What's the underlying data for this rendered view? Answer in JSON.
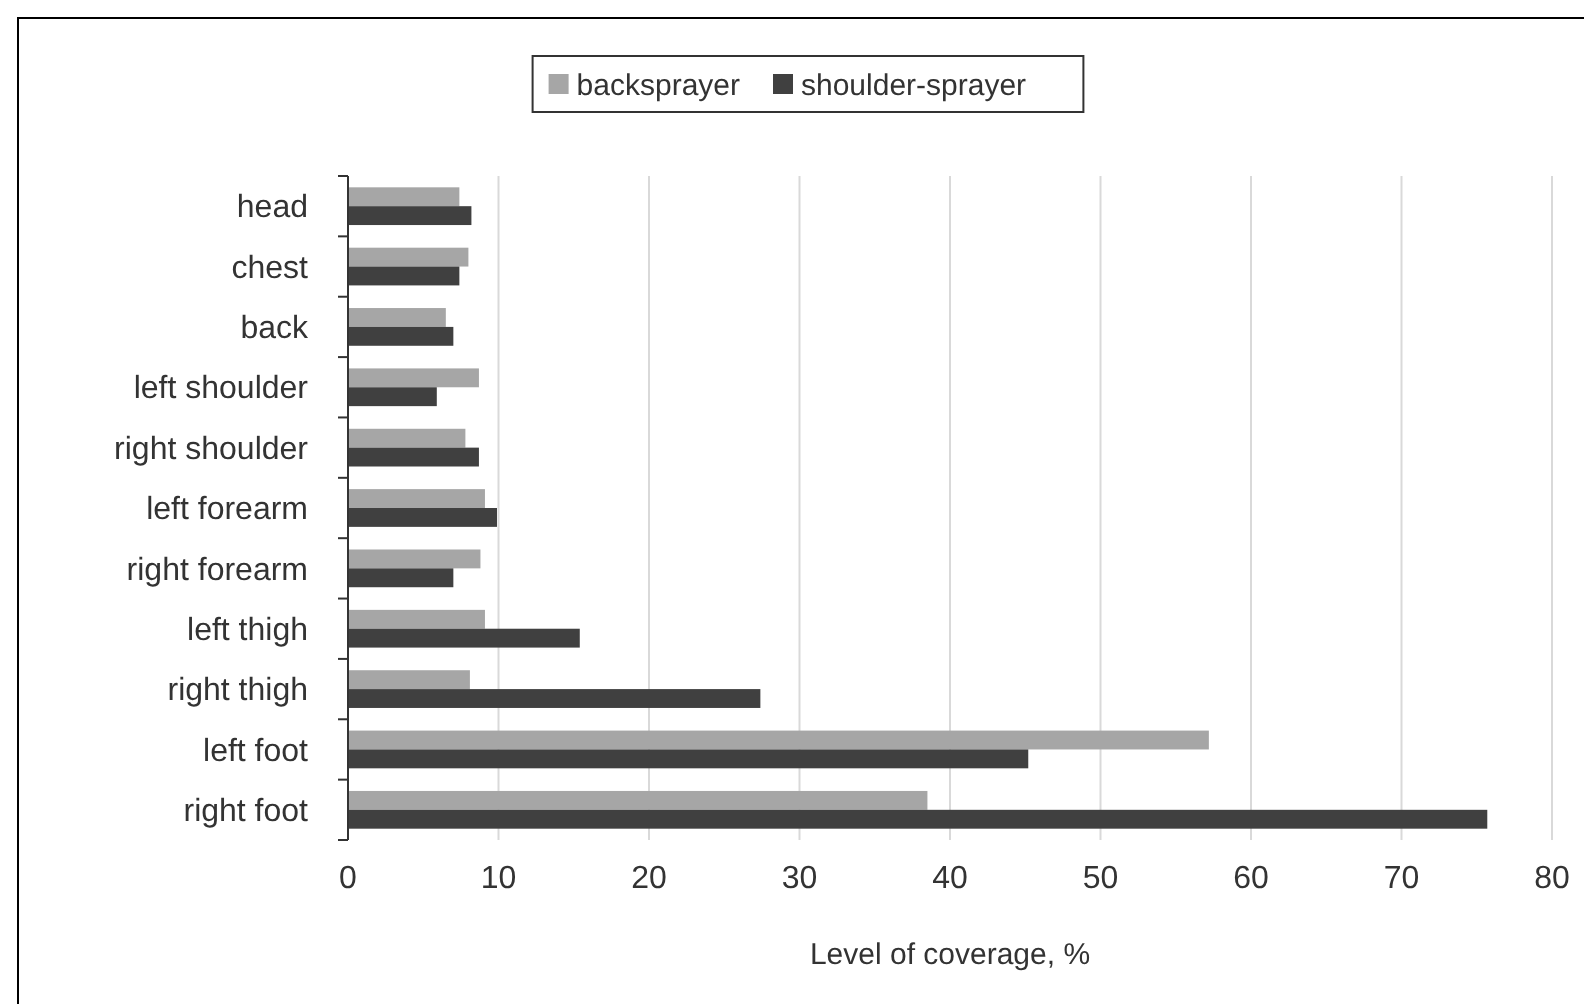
{
  "chart_data": {
    "type": "bar",
    "orientation": "horizontal",
    "xlabel": "Level of coverage, %",
    "categories": [
      "head",
      "chest",
      "back",
      "left shoulder",
      "right shoulder",
      "left forearm",
      "right forearm",
      "left thigh",
      "right thigh",
      "left foot",
      "right foot"
    ],
    "series": [
      {
        "name": "backsprayer",
        "color": "#a6a6a6",
        "values": [
          7.4,
          8.0,
          6.5,
          8.7,
          7.8,
          9.1,
          8.8,
          9.1,
          8.1,
          57.2,
          38.5
        ]
      },
      {
        "name": "shoulder-sprayer",
        "color": "#404040",
        "values": [
          8.2,
          7.4,
          7.0,
          5.9,
          8.7,
          9.9,
          7.0,
          15.4,
          27.4,
          45.2,
          75.7
        ]
      }
    ],
    "xlim": [
      0,
      80
    ],
    "xticks": [
      0,
      10,
      20,
      30,
      40,
      50,
      60,
      70,
      80
    ],
    "grid": "x",
    "legend": "top"
  }
}
